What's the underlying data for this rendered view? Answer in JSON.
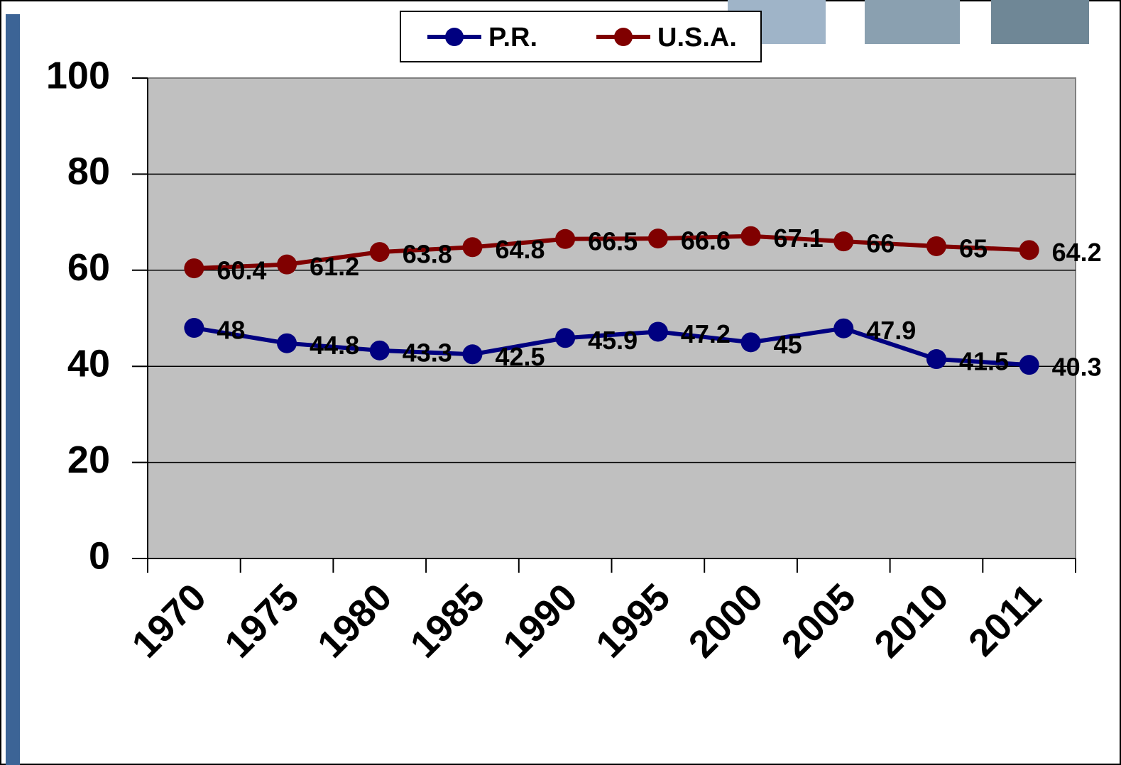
{
  "chart_data": {
    "type": "line",
    "categories": [
      "1970",
      "1975",
      "1980",
      "1985",
      "1990",
      "1995",
      "2000",
      "2005",
      "2010",
      "2011"
    ],
    "series": [
      {
        "name": "P.R.",
        "color": "#000080",
        "values": [
          48,
          44.8,
          43.3,
          42.5,
          45.9,
          47.2,
          45,
          47.9,
          41.5,
          40.3
        ]
      },
      {
        "name": "U.S.A.",
        "color": "#800000",
        "values": [
          60.4,
          61.2,
          63.8,
          64.8,
          66.5,
          66.6,
          67.1,
          66,
          65,
          64.2
        ]
      }
    ],
    "ylim": [
      0,
      100
    ],
    "yticks": [
      0,
      20,
      40,
      60,
      80,
      100
    ],
    "grid": true,
    "legend": "top"
  }
}
